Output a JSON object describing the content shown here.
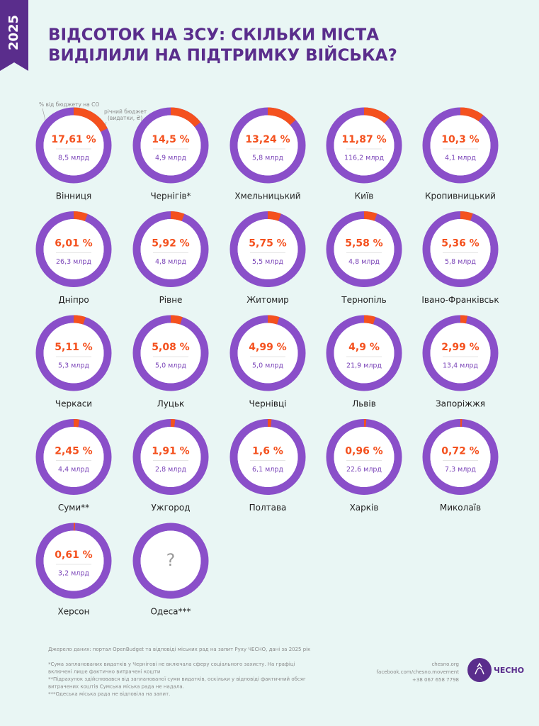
{
  "chart_data": {
    "type": "donut-grid",
    "badge": "2025",
    "title_lines": [
      "ВІДСОТОК НА ЗСУ: СКІЛЬКИ МІСТА",
      "ВИДІЛИЛИ НА ПІДТРИМКУ ВІЙСЬКА?"
    ],
    "annotations": [
      "% від бюджету на СО",
      "річний бюджет",
      "(видатки, ₴)"
    ],
    "categories": [
      "Вінниця",
      "Чернігів*",
      "Хмельницький",
      "Київ",
      "Кропивницький",
      "Дніпро",
      "Рівне",
      "Житомир",
      "Тернопіль",
      "Івано-Франківськ",
      "Черкаси",
      "Луцьк",
      "Чернівці",
      "Львів",
      "Запоріжжя",
      "Суми**",
      "Ужгород",
      "Полтава",
      "Харків",
      "Миколаїв",
      "Херсон",
      "Одеса***"
    ],
    "values": [
      17.61,
      14.5,
      13.24,
      11.87,
      10.3,
      6.01,
      5.92,
      5.75,
      5.58,
      5.36,
      5.11,
      5.08,
      4.99,
      4.9,
      2.99,
      2.45,
      1.91,
      1.6,
      0.96,
      0.72,
      0.61,
      null
    ],
    "value_labels": [
      "17,61 %",
      "14,5 %",
      "13,24 %",
      "11,87 %",
      "10,3 %",
      "6,01 %",
      "5,92 %",
      "5,75 %",
      "5,58 %",
      "5,36 %",
      "5,11 %",
      "5,08 %",
      "4,99 %",
      "4,9 %",
      "2,99 %",
      "2,45 %",
      "1,91 %",
      "1,6 %",
      "0,96 %",
      "0,72 %",
      "0,61 %",
      "?"
    ],
    "budget_labels": [
      "8,5 млрд",
      "4,9 млрд",
      "5,8 млрд",
      "116,2 млрд",
      "4,1 млрд",
      "26,3 млрд",
      "4,8 млрд",
      "5,5 млрд",
      "4,8 млрд",
      "5,8 млрд",
      "5,3 млрд",
      "5,0 млрд",
      "5,0 млрд",
      "21,9 млрд",
      "13,4 млрд",
      "4,4 млрд",
      "2,8 млрд",
      "6,1 млрд",
      "22,6 млрд",
      "7,3 млрд",
      "3,2 млрд",
      null
    ],
    "colors": {
      "share": "#f4511e",
      "rest": "#8a4fc9"
    },
    "source": "Джерело даних: портал OpenBudget та відповіді міських рад на запит Руху ЧЕСНО, дані за 2025 рік",
    "footnotes": [
      "*Сума запланованих видатків у Чернігові не включала сферу соціального захисту. На графіці",
      "включені лише фактично витрачені кошти",
      "**Підрахунок здійснювався від запланованої суми видатків, оскільки у відповіді фактичний обсяг",
      "витрачених коштів Сумська міська рада не надала.",
      "***Одеська міська рада не відповіла на запит."
    ],
    "contacts": [
      "chesno.org",
      "facebook.com/chesno.movement",
      "+38 067 658 7798"
    ],
    "logo": "ЧЕСНО"
  }
}
